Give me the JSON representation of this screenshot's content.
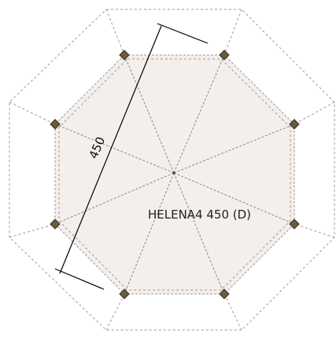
{
  "diagram": {
    "model_label": "HELENA4 450 (D)",
    "dimension_label": "450",
    "colors": {
      "floor_fill": "#f4efeb",
      "guide_stroke": "#9a9a9a",
      "post_fill": "#6b5a3e",
      "dimension_stroke": "#000000"
    },
    "post_count": 8,
    "shape": "octagon"
  }
}
